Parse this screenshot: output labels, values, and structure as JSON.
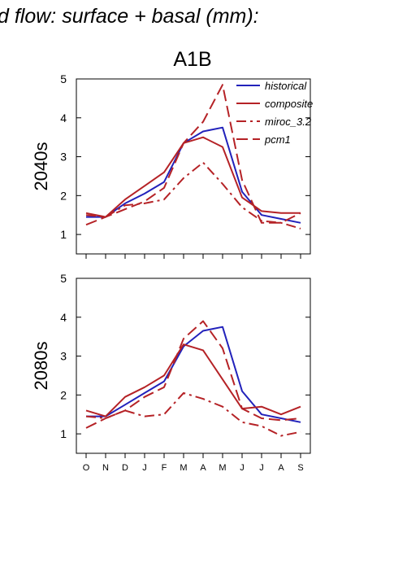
{
  "page": {
    "header": "d flow: surface + basal (mm):",
    "title": "A1B"
  },
  "legend": {
    "placement": "top-right of upper panel",
    "entries": [
      {
        "label": "historical",
        "color": "#2222bb",
        "dash": "solid"
      },
      {
        "label": "composite",
        "color": "#b52226",
        "dash": "solid"
      },
      {
        "label": "miroc_3.2",
        "color": "#b52226",
        "dash": "dashdot"
      },
      {
        "label": "pcm1",
        "color": "#b52226",
        "dash": "dashed"
      }
    ]
  },
  "chart_data": [
    {
      "type": "line",
      "panel_label": "2040s",
      "x": [
        "O",
        "N",
        "D",
        "J",
        "F",
        "M",
        "A",
        "M",
        "J",
        "J",
        "A",
        "S"
      ],
      "ylim": [
        0.5,
        5
      ],
      "yticks": [
        1,
        2,
        3,
        4,
        5
      ],
      "series": [
        {
          "name": "historical",
          "color": "#2222bb",
          "dash": "solid",
          "values": [
            1.45,
            1.45,
            1.8,
            2.05,
            2.35,
            3.35,
            3.65,
            3.75,
            2.1,
            1.5,
            1.4,
            1.3
          ]
        },
        {
          "name": "composite",
          "color": "#b52226",
          "dash": "solid",
          "values": [
            1.55,
            1.45,
            1.9,
            2.25,
            2.6,
            3.35,
            3.5,
            3.25,
            1.95,
            1.6,
            1.55,
            1.55
          ]
        },
        {
          "name": "miroc_3.2",
          "color": "#b52226",
          "dash": "dashdot",
          "values": [
            1.5,
            1.45,
            1.75,
            1.8,
            1.9,
            2.45,
            2.85,
            2.3,
            1.7,
            1.35,
            1.3,
            1.15
          ]
        },
        {
          "name": "pcm1",
          "color": "#b52226",
          "dash": "dashed",
          "values": [
            1.25,
            1.45,
            1.65,
            1.85,
            2.2,
            3.35,
            3.9,
            4.85,
            2.4,
            1.3,
            1.3,
            1.55
          ]
        }
      ]
    },
    {
      "type": "line",
      "panel_label": "2080s",
      "x": [
        "O",
        "N",
        "D",
        "J",
        "F",
        "M",
        "A",
        "M",
        "J",
        "J",
        "A",
        "S"
      ],
      "ylim": [
        0.5,
        5
      ],
      "yticks": [
        1,
        2,
        3,
        4,
        5
      ],
      "series": [
        {
          "name": "historical",
          "color": "#2222bb",
          "dash": "solid",
          "values": [
            1.45,
            1.45,
            1.75,
            2.05,
            2.35,
            3.25,
            3.65,
            3.75,
            2.1,
            1.5,
            1.4,
            1.3
          ]
        },
        {
          "name": "composite",
          "color": "#b52226",
          "dash": "solid",
          "values": [
            1.6,
            1.45,
            1.95,
            2.2,
            2.5,
            3.3,
            3.15,
            2.4,
            1.65,
            1.7,
            1.5,
            1.7
          ]
        },
        {
          "name": "miroc_3.2",
          "color": "#b52226",
          "dash": "dashdot",
          "values": [
            1.45,
            1.4,
            1.6,
            1.45,
            1.5,
            2.05,
            1.9,
            1.7,
            1.3,
            1.2,
            0.95,
            1.05
          ]
        },
        {
          "name": "pcm1",
          "color": "#b52226",
          "dash": "dashed",
          "values": [
            1.15,
            1.4,
            1.6,
            1.95,
            2.2,
            3.45,
            3.9,
            3.2,
            1.65,
            1.4,
            1.35,
            1.4
          ]
        }
      ]
    }
  ]
}
